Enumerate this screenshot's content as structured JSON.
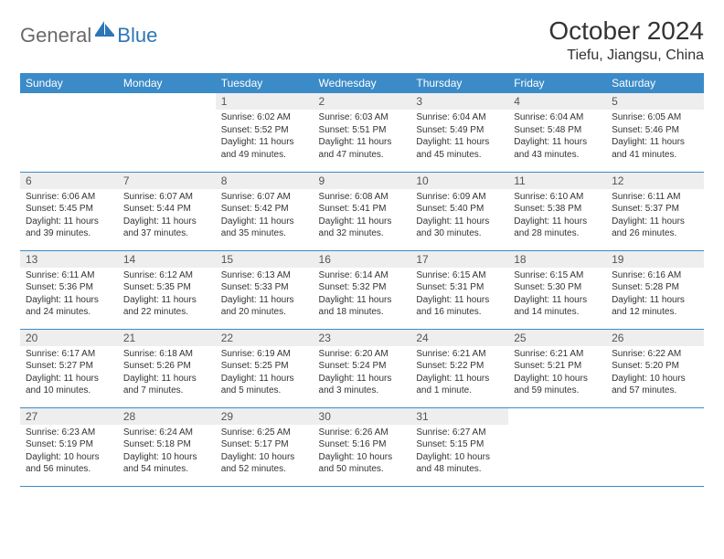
{
  "logo": {
    "general": "General",
    "blue": "Blue"
  },
  "title": "October 2024",
  "location": "Tiefu, Jiangsu, China",
  "colors": {
    "header_bg": "#3b8bc8",
    "header_text": "#ffffff",
    "daynum_bg": "#eeeeee",
    "border": "#3b8bc8",
    "logo_gray": "#6a6a6a",
    "logo_blue": "#2e75b6"
  },
  "weekdays": [
    "Sunday",
    "Monday",
    "Tuesday",
    "Wednesday",
    "Thursday",
    "Friday",
    "Saturday"
  ],
  "first_weekday_index": 2,
  "days": [
    {
      "n": 1,
      "sunrise": "6:02 AM",
      "sunset": "5:52 PM",
      "daylight": "11 hours and 49 minutes."
    },
    {
      "n": 2,
      "sunrise": "6:03 AM",
      "sunset": "5:51 PM",
      "daylight": "11 hours and 47 minutes."
    },
    {
      "n": 3,
      "sunrise": "6:04 AM",
      "sunset": "5:49 PM",
      "daylight": "11 hours and 45 minutes."
    },
    {
      "n": 4,
      "sunrise": "6:04 AM",
      "sunset": "5:48 PM",
      "daylight": "11 hours and 43 minutes."
    },
    {
      "n": 5,
      "sunrise": "6:05 AM",
      "sunset": "5:46 PM",
      "daylight": "11 hours and 41 minutes."
    },
    {
      "n": 6,
      "sunrise": "6:06 AM",
      "sunset": "5:45 PM",
      "daylight": "11 hours and 39 minutes."
    },
    {
      "n": 7,
      "sunrise": "6:07 AM",
      "sunset": "5:44 PM",
      "daylight": "11 hours and 37 minutes."
    },
    {
      "n": 8,
      "sunrise": "6:07 AM",
      "sunset": "5:42 PM",
      "daylight": "11 hours and 35 minutes."
    },
    {
      "n": 9,
      "sunrise": "6:08 AM",
      "sunset": "5:41 PM",
      "daylight": "11 hours and 32 minutes."
    },
    {
      "n": 10,
      "sunrise": "6:09 AM",
      "sunset": "5:40 PM",
      "daylight": "11 hours and 30 minutes."
    },
    {
      "n": 11,
      "sunrise": "6:10 AM",
      "sunset": "5:38 PM",
      "daylight": "11 hours and 28 minutes."
    },
    {
      "n": 12,
      "sunrise": "6:11 AM",
      "sunset": "5:37 PM",
      "daylight": "11 hours and 26 minutes."
    },
    {
      "n": 13,
      "sunrise": "6:11 AM",
      "sunset": "5:36 PM",
      "daylight": "11 hours and 24 minutes."
    },
    {
      "n": 14,
      "sunrise": "6:12 AM",
      "sunset": "5:35 PM",
      "daylight": "11 hours and 22 minutes."
    },
    {
      "n": 15,
      "sunrise": "6:13 AM",
      "sunset": "5:33 PM",
      "daylight": "11 hours and 20 minutes."
    },
    {
      "n": 16,
      "sunrise": "6:14 AM",
      "sunset": "5:32 PM",
      "daylight": "11 hours and 18 minutes."
    },
    {
      "n": 17,
      "sunrise": "6:15 AM",
      "sunset": "5:31 PM",
      "daylight": "11 hours and 16 minutes."
    },
    {
      "n": 18,
      "sunrise": "6:15 AM",
      "sunset": "5:30 PM",
      "daylight": "11 hours and 14 minutes."
    },
    {
      "n": 19,
      "sunrise": "6:16 AM",
      "sunset": "5:28 PM",
      "daylight": "11 hours and 12 minutes."
    },
    {
      "n": 20,
      "sunrise": "6:17 AM",
      "sunset": "5:27 PM",
      "daylight": "11 hours and 10 minutes."
    },
    {
      "n": 21,
      "sunrise": "6:18 AM",
      "sunset": "5:26 PM",
      "daylight": "11 hours and 7 minutes."
    },
    {
      "n": 22,
      "sunrise": "6:19 AM",
      "sunset": "5:25 PM",
      "daylight": "11 hours and 5 minutes."
    },
    {
      "n": 23,
      "sunrise": "6:20 AM",
      "sunset": "5:24 PM",
      "daylight": "11 hours and 3 minutes."
    },
    {
      "n": 24,
      "sunrise": "6:21 AM",
      "sunset": "5:22 PM",
      "daylight": "11 hours and 1 minute."
    },
    {
      "n": 25,
      "sunrise": "6:21 AM",
      "sunset": "5:21 PM",
      "daylight": "10 hours and 59 minutes."
    },
    {
      "n": 26,
      "sunrise": "6:22 AM",
      "sunset": "5:20 PM",
      "daylight": "10 hours and 57 minutes."
    },
    {
      "n": 27,
      "sunrise": "6:23 AM",
      "sunset": "5:19 PM",
      "daylight": "10 hours and 56 minutes."
    },
    {
      "n": 28,
      "sunrise": "6:24 AM",
      "sunset": "5:18 PM",
      "daylight": "10 hours and 54 minutes."
    },
    {
      "n": 29,
      "sunrise": "6:25 AM",
      "sunset": "5:17 PM",
      "daylight": "10 hours and 52 minutes."
    },
    {
      "n": 30,
      "sunrise": "6:26 AM",
      "sunset": "5:16 PM",
      "daylight": "10 hours and 50 minutes."
    },
    {
      "n": 31,
      "sunrise": "6:27 AM",
      "sunset": "5:15 PM",
      "daylight": "10 hours and 48 minutes."
    }
  ],
  "labels": {
    "sunrise": "Sunrise:",
    "sunset": "Sunset:",
    "daylight": "Daylight:"
  }
}
